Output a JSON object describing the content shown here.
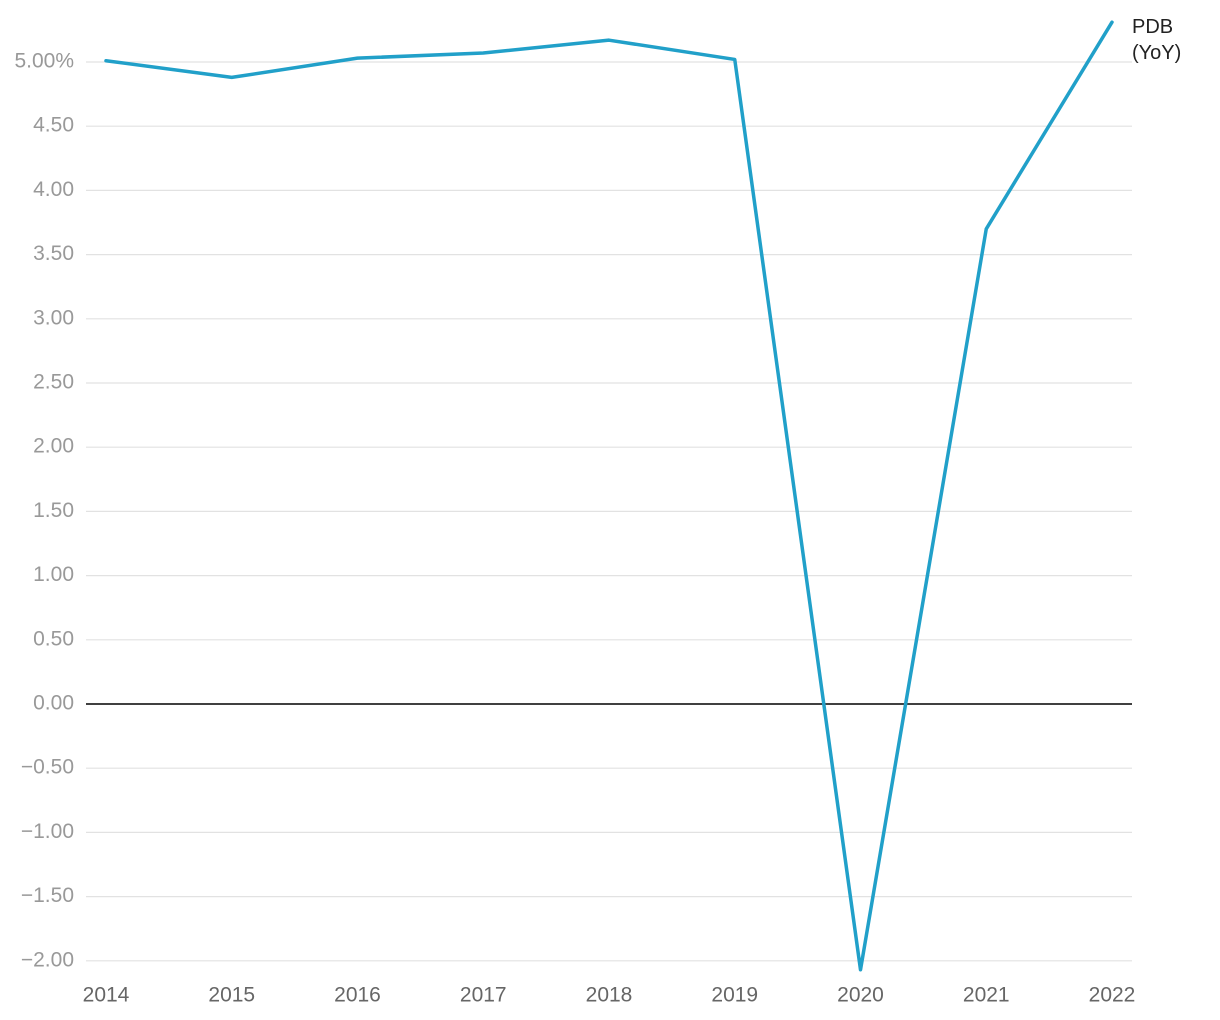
{
  "chart_data": {
    "type": "line",
    "categories": [
      "2014",
      "2015",
      "2016",
      "2017",
      "2018",
      "2019",
      "2020",
      "2021",
      "2022"
    ],
    "series": [
      {
        "name": "PDB (YoY)",
        "color": "#21a0c9",
        "values": [
          5.01,
          4.88,
          5.03,
          5.07,
          5.17,
          5.02,
          -2.07,
          3.7,
          5.31
        ]
      }
    ],
    "ylim": [
      -2.1,
      5.35
    ],
    "yticks": [
      {
        "value": 5,
        "label": "5.00%"
      },
      {
        "value": 4.5,
        "label": "4.50"
      },
      {
        "value": 4,
        "label": "4.00"
      },
      {
        "value": 3.5,
        "label": "3.50"
      },
      {
        "value": 3,
        "label": "3.00"
      },
      {
        "value": 2.5,
        "label": "2.50"
      },
      {
        "value": 2,
        "label": "2.00"
      },
      {
        "value": 1.5,
        "label": "1.50"
      },
      {
        "value": 1,
        "label": "1.00"
      },
      {
        "value": 0.5,
        "label": "0.50"
      },
      {
        "value": 0,
        "label": "0.00"
      },
      {
        "value": -0.5,
        "label": "−0.50"
      },
      {
        "value": -1,
        "label": "−1.00"
      },
      {
        "value": -1.5,
        "label": "−1.50"
      },
      {
        "value": -2,
        "label": "−2.00"
      }
    ],
    "grid": true
  }
}
